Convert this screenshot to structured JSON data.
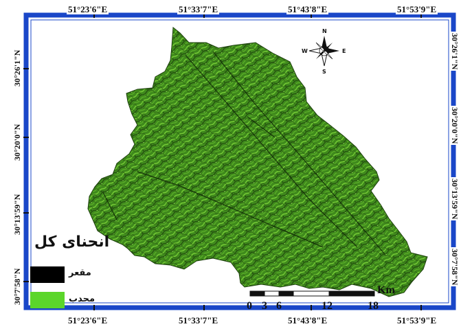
{
  "map": {
    "longitude_labels": [
      "51°23'6\"E",
      "51°33'7\"E",
      "51°43'8\"E",
      "51°53'9\"E"
    ],
    "latitude_labels": [
      "30°7'58\"N",
      "30°13'59\"N",
      "30°20'0\"N",
      "30°26'1\"N"
    ],
    "frame_color": "#1a47c8",
    "legend": {
      "title": "انحنای کل",
      "items": [
        {
          "label": "مقعر",
          "color": "#000000"
        },
        {
          "label": "محدب",
          "color": "#5bd62a"
        }
      ]
    },
    "scale_bar": {
      "ticks": [
        "0",
        "3",
        "6",
        "12",
        "18"
      ],
      "unit": "Km"
    },
    "north_arrow": {
      "n": "N",
      "s": "S",
      "e": "E",
      "w": "W"
    },
    "terrain_colors": {
      "base": "#3f8a1c",
      "light": "#7fd63a",
      "dark": "#1b3d0c"
    }
  }
}
